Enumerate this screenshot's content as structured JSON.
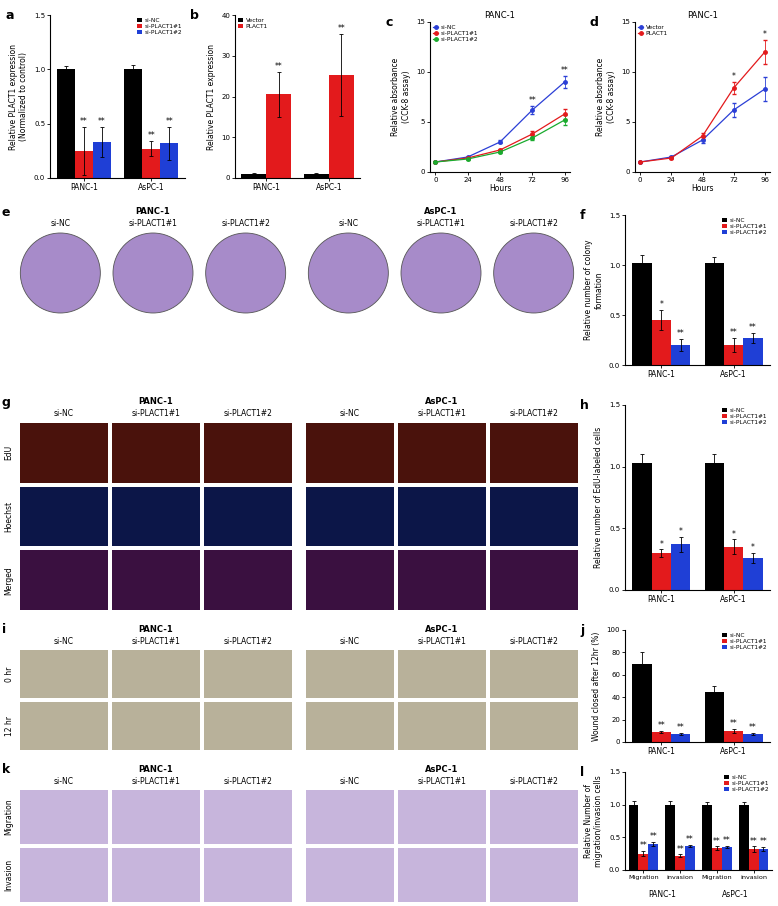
{
  "chart_data": [
    {
      "panel": "a",
      "type": "bar",
      "categories": [
        "PANC-1",
        "AsPC-1"
      ],
      "ylabel": "Relative PLACT1 expression\n(Normalized to control)",
      "ylim": [
        0,
        1.5
      ],
      "yticks": [
        0.0,
        0.5,
        1.0,
        1.5
      ],
      "legend": "upper right",
      "series": [
        {
          "name": "si-NC",
          "color": "#000000",
          "values": [
            1.0,
            1.0
          ],
          "errors": [
            0.03,
            0.04
          ]
        },
        {
          "name": "si-PLACT1#1",
          "color": "#e31a1c",
          "values": [
            0.25,
            0.27
          ],
          "errors": [
            0.22,
            0.07
          ],
          "significance": [
            "**",
            "**"
          ]
        },
        {
          "name": "si-PLACT1#2",
          "color": "#1f3fd6",
          "values": [
            0.33,
            0.32
          ],
          "errors": [
            0.14,
            0.15
          ],
          "significance": [
            "**",
            "**"
          ]
        }
      ]
    },
    {
      "panel": "b",
      "type": "bar",
      "categories": [
        "PANC-1",
        "AsPC-1"
      ],
      "ylabel": "Relative PLACT1 expression",
      "ylim": [
        0,
        40
      ],
      "yticks": [
        0,
        10,
        20,
        30,
        40
      ],
      "legend": "upper left",
      "series": [
        {
          "name": "Vector",
          "color": "#000000",
          "values": [
            1.0,
            1.0
          ],
          "errors": [
            0.2,
            0.2
          ]
        },
        {
          "name": "PLACT1",
          "color": "#e31a1c",
          "values": [
            20.5,
            25.3
          ],
          "errors": [
            5.5,
            10.0
          ],
          "significance": [
            "**",
            "**"
          ]
        }
      ]
    },
    {
      "panel": "c",
      "type": "line",
      "title": "PANC-1",
      "xlabel": "Hours",
      "ylabel": "Relative absorbance\n(CCK-8 assay)",
      "x": [
        0,
        24,
        48,
        72,
        96
      ],
      "xlim": [
        -4,
        100
      ],
      "xticks": [
        0,
        24,
        48,
        72,
        96
      ],
      "ylim": [
        0,
        15
      ],
      "yticks": [
        0,
        5,
        10,
        15
      ],
      "legend": "upper left",
      "series": [
        {
          "name": "si-NC",
          "color": "#2b3fd6",
          "marker": "circle",
          "values": [
            1.0,
            1.5,
            3.0,
            6.2,
            9.0
          ],
          "errors": [
            0.0,
            0.05,
            0.15,
            0.4,
            0.6
          ],
          "significance": [
            null,
            null,
            null,
            "**",
            "**"
          ]
        },
        {
          "name": "si-PLACT1#1",
          "color": "#e31a1c",
          "marker": "circle",
          "values": [
            1.0,
            1.4,
            2.2,
            3.8,
            5.8
          ],
          "errors": [
            0.0,
            0.05,
            0.1,
            0.3,
            0.5
          ]
        },
        {
          "name": "si-PLACT1#2",
          "color": "#1aab2e",
          "marker": "circle",
          "values": [
            1.0,
            1.3,
            2.0,
            3.4,
            5.2
          ],
          "errors": [
            0.0,
            0.05,
            0.1,
            0.25,
            0.5
          ]
        }
      ]
    },
    {
      "panel": "d",
      "type": "line",
      "title": "PANC-1",
      "xlabel": "Hours",
      "ylabel": "Relative absorbance\n(CCK-8 assay)",
      "x": [
        0,
        24,
        48,
        72,
        96
      ],
      "xlim": [
        -4,
        100
      ],
      "xticks": [
        0,
        24,
        48,
        72,
        96
      ],
      "ylim": [
        0,
        15
      ],
      "yticks": [
        0,
        5,
        10,
        15
      ],
      "legend": "upper left",
      "series": [
        {
          "name": "Vector",
          "color": "#2b3fd6",
          "marker": "circle",
          "values": [
            1.0,
            1.5,
            3.2,
            6.2,
            8.3
          ],
          "errors": [
            0.0,
            0.1,
            0.3,
            0.7,
            1.2
          ]
        },
        {
          "name": "PLACT1",
          "color": "#e31a1c",
          "marker": "circle",
          "values": [
            1.0,
            1.4,
            3.6,
            8.4,
            12.0
          ],
          "errors": [
            0.0,
            0.1,
            0.3,
            0.6,
            1.2
          ],
          "significance": [
            null,
            null,
            null,
            "*",
            "*"
          ]
        }
      ]
    },
    {
      "panel": "e",
      "type": "image",
      "groups": [
        "PANC-1",
        "AsPC-1"
      ],
      "columns": [
        "si-NC",
        "si-PLACT1#1",
        "si-PLACT1#2"
      ],
      "marker": "circle",
      "colors": [
        "#a78bc9"
      ]
    },
    {
      "panel": "f",
      "type": "bar",
      "categories": [
        "PANC-1",
        "AsPC-1"
      ],
      "ylabel": "Relative number of colony\nformation",
      "ylim": [
        0,
        1.5
      ],
      "yticks": [
        0.0,
        0.5,
        1.0,
        1.5
      ],
      "legend": "upper right",
      "series": [
        {
          "name": "si-NC",
          "color": "#000000",
          "values": [
            1.02,
            1.02
          ],
          "errors": [
            0.08,
            0.06
          ]
        },
        {
          "name": "si-PLACT1#1",
          "color": "#e31a1c",
          "values": [
            0.45,
            0.2
          ],
          "errors": [
            0.1,
            0.07
          ],
          "significance": [
            "*",
            "**"
          ]
        },
        {
          "name": "si-PLACT1#2",
          "color": "#1f3fd6",
          "values": [
            0.2,
            0.27
          ],
          "errors": [
            0.06,
            0.05
          ],
          "significance": [
            "**",
            "**"
          ]
        }
      ]
    },
    {
      "panel": "g",
      "type": "image",
      "groups": [
        "PANC-1",
        "AsPC-1"
      ],
      "columns": [
        "si-NC",
        "si-PLACT1#1",
        "si-PLACT1#2"
      ],
      "rows": [
        "EdU",
        "Hoechst",
        "Merged"
      ],
      "marker": "square",
      "colors": [
        "#4a120c",
        "#0c1648",
        "#3a1040"
      ]
    },
    {
      "panel": "h",
      "type": "bar",
      "categories": [
        "PANC-1",
        "AsPC-1"
      ],
      "ylabel": "Relative number of EdU-labeled cells",
      "ylim": [
        0,
        1.5
      ],
      "yticks": [
        0.0,
        0.5,
        1.0,
        1.5
      ],
      "legend": "upper right",
      "series": [
        {
          "name": "si-NC",
          "color": "#000000",
          "values": [
            1.03,
            1.03
          ],
          "errors": [
            0.07,
            0.07
          ]
        },
        {
          "name": "si-PLACT1#1",
          "color": "#e31a1c",
          "values": [
            0.3,
            0.35
          ],
          "errors": [
            0.03,
            0.06
          ],
          "significance": [
            "*",
            "*"
          ]
        },
        {
          "name": "si-PLACT1#2",
          "color": "#1f3fd6",
          "values": [
            0.37,
            0.26
          ],
          "errors": [
            0.06,
            0.04
          ],
          "significance": [
            "*",
            "*"
          ]
        }
      ]
    },
    {
      "panel": "i",
      "type": "image",
      "groups": [
        "PANC-1",
        "AsPC-1"
      ],
      "columns": [
        "si-NC",
        "si-PLACT1#1",
        "si-PLACT1#2"
      ],
      "rows": [
        "0 hr",
        "12 hr"
      ],
      "marker": "square",
      "colors": [
        "#b8b19a",
        "#b8b19a"
      ]
    },
    {
      "panel": "j",
      "type": "bar",
      "categories": [
        "PANC-1",
        "AsPC-1"
      ],
      "ylabel": "Wound closed after 12hr (%)",
      "ylim": [
        0,
        100
      ],
      "yticks": [
        0,
        20,
        40,
        60,
        80,
        100
      ],
      "legend": "upper right",
      "series": [
        {
          "name": "si-NC",
          "color": "#000000",
          "values": [
            70,
            45
          ],
          "errors": [
            10,
            5
          ]
        },
        {
          "name": "si-PLACT1#1",
          "color": "#e31a1c",
          "values": [
            9,
            10
          ],
          "errors": [
            1,
            2
          ],
          "significance": [
            "**",
            "**"
          ]
        },
        {
          "name": "si-PLACT1#2",
          "color": "#1f3fd6",
          "values": [
            7,
            7
          ],
          "errors": [
            1,
            1
          ],
          "significance": [
            "**",
            "**"
          ]
        }
      ]
    },
    {
      "panel": "k",
      "type": "image",
      "groups": [
        "PANC-1",
        "AsPC-1"
      ],
      "columns": [
        "si-NC",
        "si-PLACT1#1",
        "si-PLACT1#2"
      ],
      "rows": [
        "Migration",
        "Invasion"
      ],
      "marker": "square",
      "colors": [
        "#c7b5dc",
        "#c7b5dc"
      ]
    },
    {
      "panel": "l",
      "type": "bar",
      "categories": [
        "Migration",
        "invasion",
        "Migration",
        "invasion"
      ],
      "group_labels": [
        "PANC-1",
        "AsPC-1"
      ],
      "ylabel": "Relative Number of\nmigration/invasion cells",
      "ylim": [
        0,
        1.5
      ],
      "yticks": [
        0.0,
        0.5,
        1.0,
        1.5
      ],
      "legend": "upper right",
      "series": [
        {
          "name": "si-NC",
          "color": "#000000",
          "values": [
            1.0,
            1.0,
            1.0,
            1.0
          ],
          "errors": [
            0.05,
            0.05,
            0.04,
            0.04
          ]
        },
        {
          "name": "si-PLACT1#1",
          "color": "#e31a1c",
          "values": [
            0.25,
            0.22,
            0.33,
            0.32
          ],
          "errors": [
            0.04,
            0.02,
            0.03,
            0.04
          ],
          "significance": [
            "**",
            "**",
            "**",
            "**"
          ]
        },
        {
          "name": "si-PLACT1#2",
          "color": "#1f3fd6",
          "values": [
            0.4,
            0.37,
            0.35,
            0.32
          ],
          "errors": [
            0.03,
            0.02,
            0.02,
            0.03
          ],
          "significance": [
            "**",
            "**",
            "**",
            "**"
          ]
        }
      ]
    }
  ]
}
